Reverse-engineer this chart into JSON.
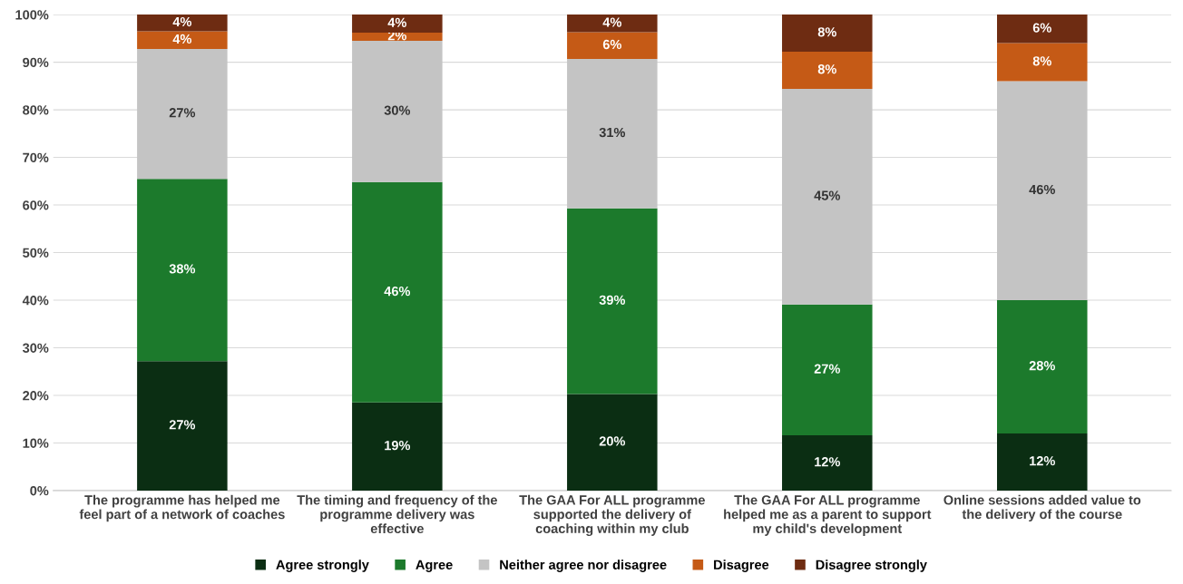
{
  "chart_data": {
    "type": "bar",
    "stacked": true,
    "categories": [
      "The programme has helped me feel part of a network of coaches",
      "The timing and frequency of the programme delivery was effective",
      "The GAA For ALL programme supported the delivery of coaching within my club",
      "The GAA For ALL programme helped me as a parent to support my child's development",
      "Online sessions added value to the delivery of the course"
    ],
    "series": [
      {
        "name": "Agree strongly",
        "color": "#0b2e13",
        "values": [
          27.2,
          18.5,
          20.3,
          11.6,
          12.0
        ],
        "value_labels": [
          "27%",
          "19%",
          "20%",
          "12%",
          "12%"
        ]
      },
      {
        "name": "Agree",
        "color": "#1c7a2c",
        "values": [
          38.3,
          46.3,
          39.0,
          27.5,
          28.0
        ],
        "value_labels": [
          "38%",
          "46%",
          "39%",
          "27%",
          "28%"
        ]
      },
      {
        "name": "Neither agree nor disagree",
        "color": "#c4c4c4",
        "values": [
          27.3,
          29.7,
          31.4,
          45.3,
          46.0
        ],
        "value_labels": [
          "27%",
          "30%",
          "31%",
          "45%",
          "46%"
        ]
      },
      {
        "name": "Disagree",
        "color": "#c55a16",
        "values": [
          3.7,
          1.7,
          5.6,
          7.8,
          8.0
        ],
        "value_labels": [
          "4%",
          "2%",
          "6%",
          "8%",
          "8%"
        ]
      },
      {
        "name": "Disagree strongly",
        "color": "#6e2c12",
        "values": [
          3.5,
          3.8,
          3.7,
          7.8,
          6.0
        ],
        "value_labels": [
          "4%",
          "4%",
          "4%",
          "8%",
          "6%"
        ]
      }
    ],
    "ylim": [
      0,
      100
    ],
    "yticks": [
      {
        "value": 0,
        "label": "0%"
      },
      {
        "value": 10,
        "label": "10%"
      },
      {
        "value": 20,
        "label": "20%"
      },
      {
        "value": 30,
        "label": "30%"
      },
      {
        "value": 40,
        "label": "40%"
      },
      {
        "value": 50,
        "label": "50%"
      },
      {
        "value": 60,
        "label": "60%"
      },
      {
        "value": 70,
        "label": "70%"
      },
      {
        "value": 80,
        "label": "80%"
      },
      {
        "value": 90,
        "label": "90%"
      },
      {
        "value": 100,
        "label": "100%"
      }
    ],
    "grid": "y",
    "legend": "bottom"
  }
}
